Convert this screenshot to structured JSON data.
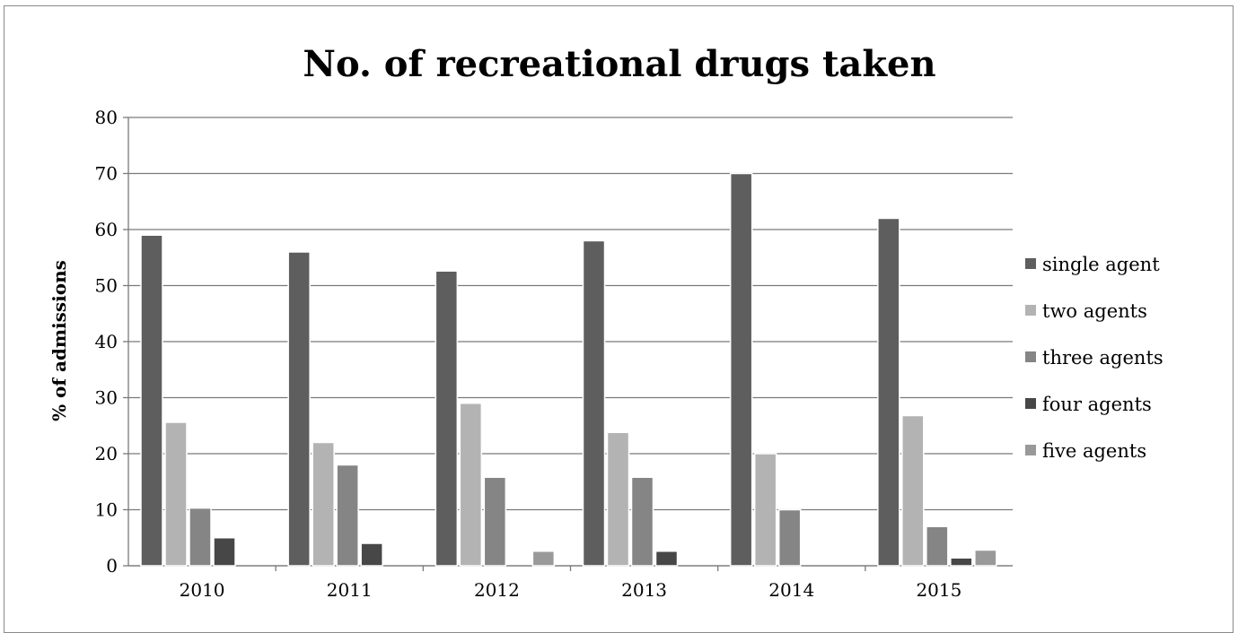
{
  "chart_data": {
    "type": "bar",
    "title": "No. of recreational drugs taken",
    "xlabel": "",
    "ylabel": "% of admissions",
    "ylim": [
      0,
      80
    ],
    "yticks": [
      0,
      10,
      20,
      30,
      40,
      50,
      60,
      70,
      80
    ],
    "categories": [
      "2010",
      "2011",
      "2012",
      "2013",
      "2014",
      "2015"
    ],
    "grid": "horizontal",
    "legend_position": "right",
    "series": [
      {
        "name": "single agent",
        "color": "#5e5e5e",
        "values": [
          59,
          56,
          52.6,
          58,
          70,
          62
        ]
      },
      {
        "name": "two agents",
        "color": "#b3b3b3",
        "values": [
          25.6,
          22,
          29,
          23.8,
          20,
          26.8
        ]
      },
      {
        "name": "three agents",
        "color": "#858585",
        "values": [
          10.3,
          18,
          15.8,
          15.8,
          10,
          7
        ]
      },
      {
        "name": "four agents",
        "color": "#474747",
        "values": [
          5,
          4,
          0,
          2.6,
          0,
          1.4
        ]
      },
      {
        "name": "five agents",
        "color": "#999999",
        "values": [
          0,
          0,
          2.6,
          0,
          0,
          2.8
        ]
      }
    ]
  }
}
